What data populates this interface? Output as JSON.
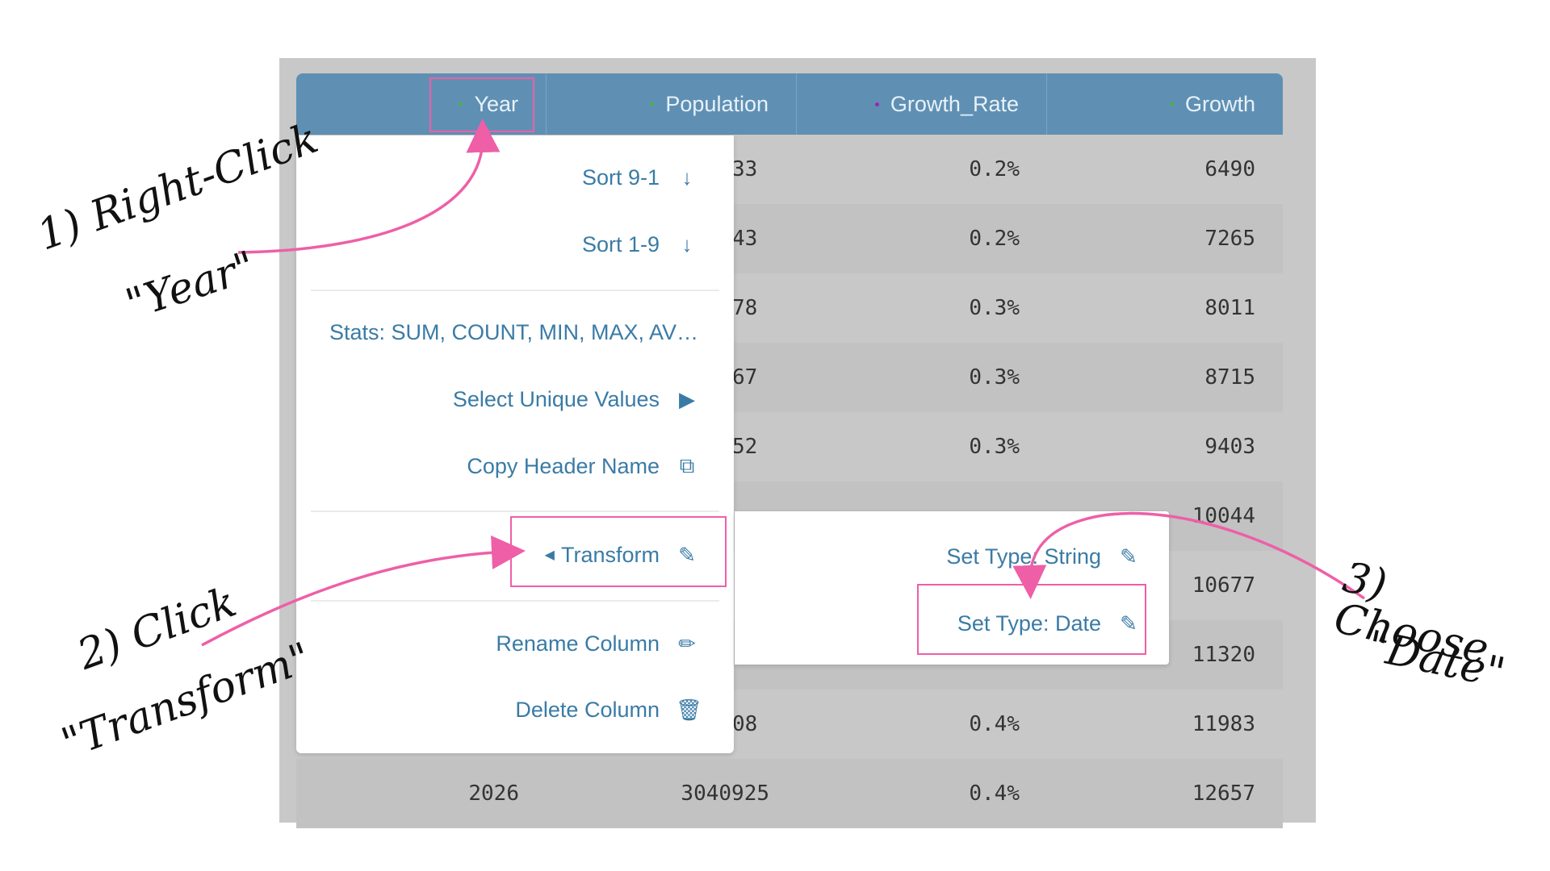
{
  "columns": [
    {
      "label": "Year",
      "dot_color": "#4caf50"
    },
    {
      "label": "Population",
      "dot_color": "#4caf50"
    },
    {
      "label": "Growth_Rate",
      "dot_color": "#9c27b0"
    },
    {
      "label": "Growth",
      "dot_color": "#4caf50"
    }
  ],
  "rows": [
    {
      "population_tail": "33",
      "rate": "0.2%",
      "growth": "6490"
    },
    {
      "population_tail": "43",
      "rate": "0.2%",
      "growth": "7265"
    },
    {
      "population_tail": "78",
      "rate": "0.3%",
      "growth": "8011"
    },
    {
      "population_tail": "67",
      "rate": "0.3%",
      "growth": "8715"
    },
    {
      "population_tail": "52",
      "rate": "0.3%",
      "growth": "9403"
    },
    {
      "population_tail": "",
      "rate": "",
      "growth": "10044"
    },
    {
      "population_tail": "",
      "rate": "",
      "growth": "10677"
    },
    {
      "population_tail": "",
      "rate": "",
      "growth": "11320"
    },
    {
      "population_tail": "08",
      "rate": "0.4%",
      "growth": "11983"
    },
    {
      "year": "2026",
      "population": "3040925",
      "rate": "0.4%",
      "growth": "12657"
    }
  ],
  "context_menu": {
    "sort_desc": "Sort 9-1",
    "sort_asc": "Sort 1-9",
    "stats": "Stats: SUM, COUNT, MIN, MAX, AV…",
    "unique": "Select Unique Values",
    "copy_header": "Copy Header Name",
    "transform": "Transform",
    "rename": "Rename Column",
    "delete": "Delete Column"
  },
  "submenu": {
    "string": "Set Type: String",
    "date": "Set Type: Date"
  },
  "annotations": {
    "step1_line1": "1) Right-Click",
    "step1_line2": "\"Year\"",
    "step2_line1": "2) Click",
    "step2_line2": "\"Transform\"",
    "step3_line1": "3) Choose",
    "step3_line2": "\"Date\""
  },
  "colors": {
    "header": "#5f90b4",
    "menu_text": "#3a7ba6",
    "highlight": "#ee5fa7"
  }
}
